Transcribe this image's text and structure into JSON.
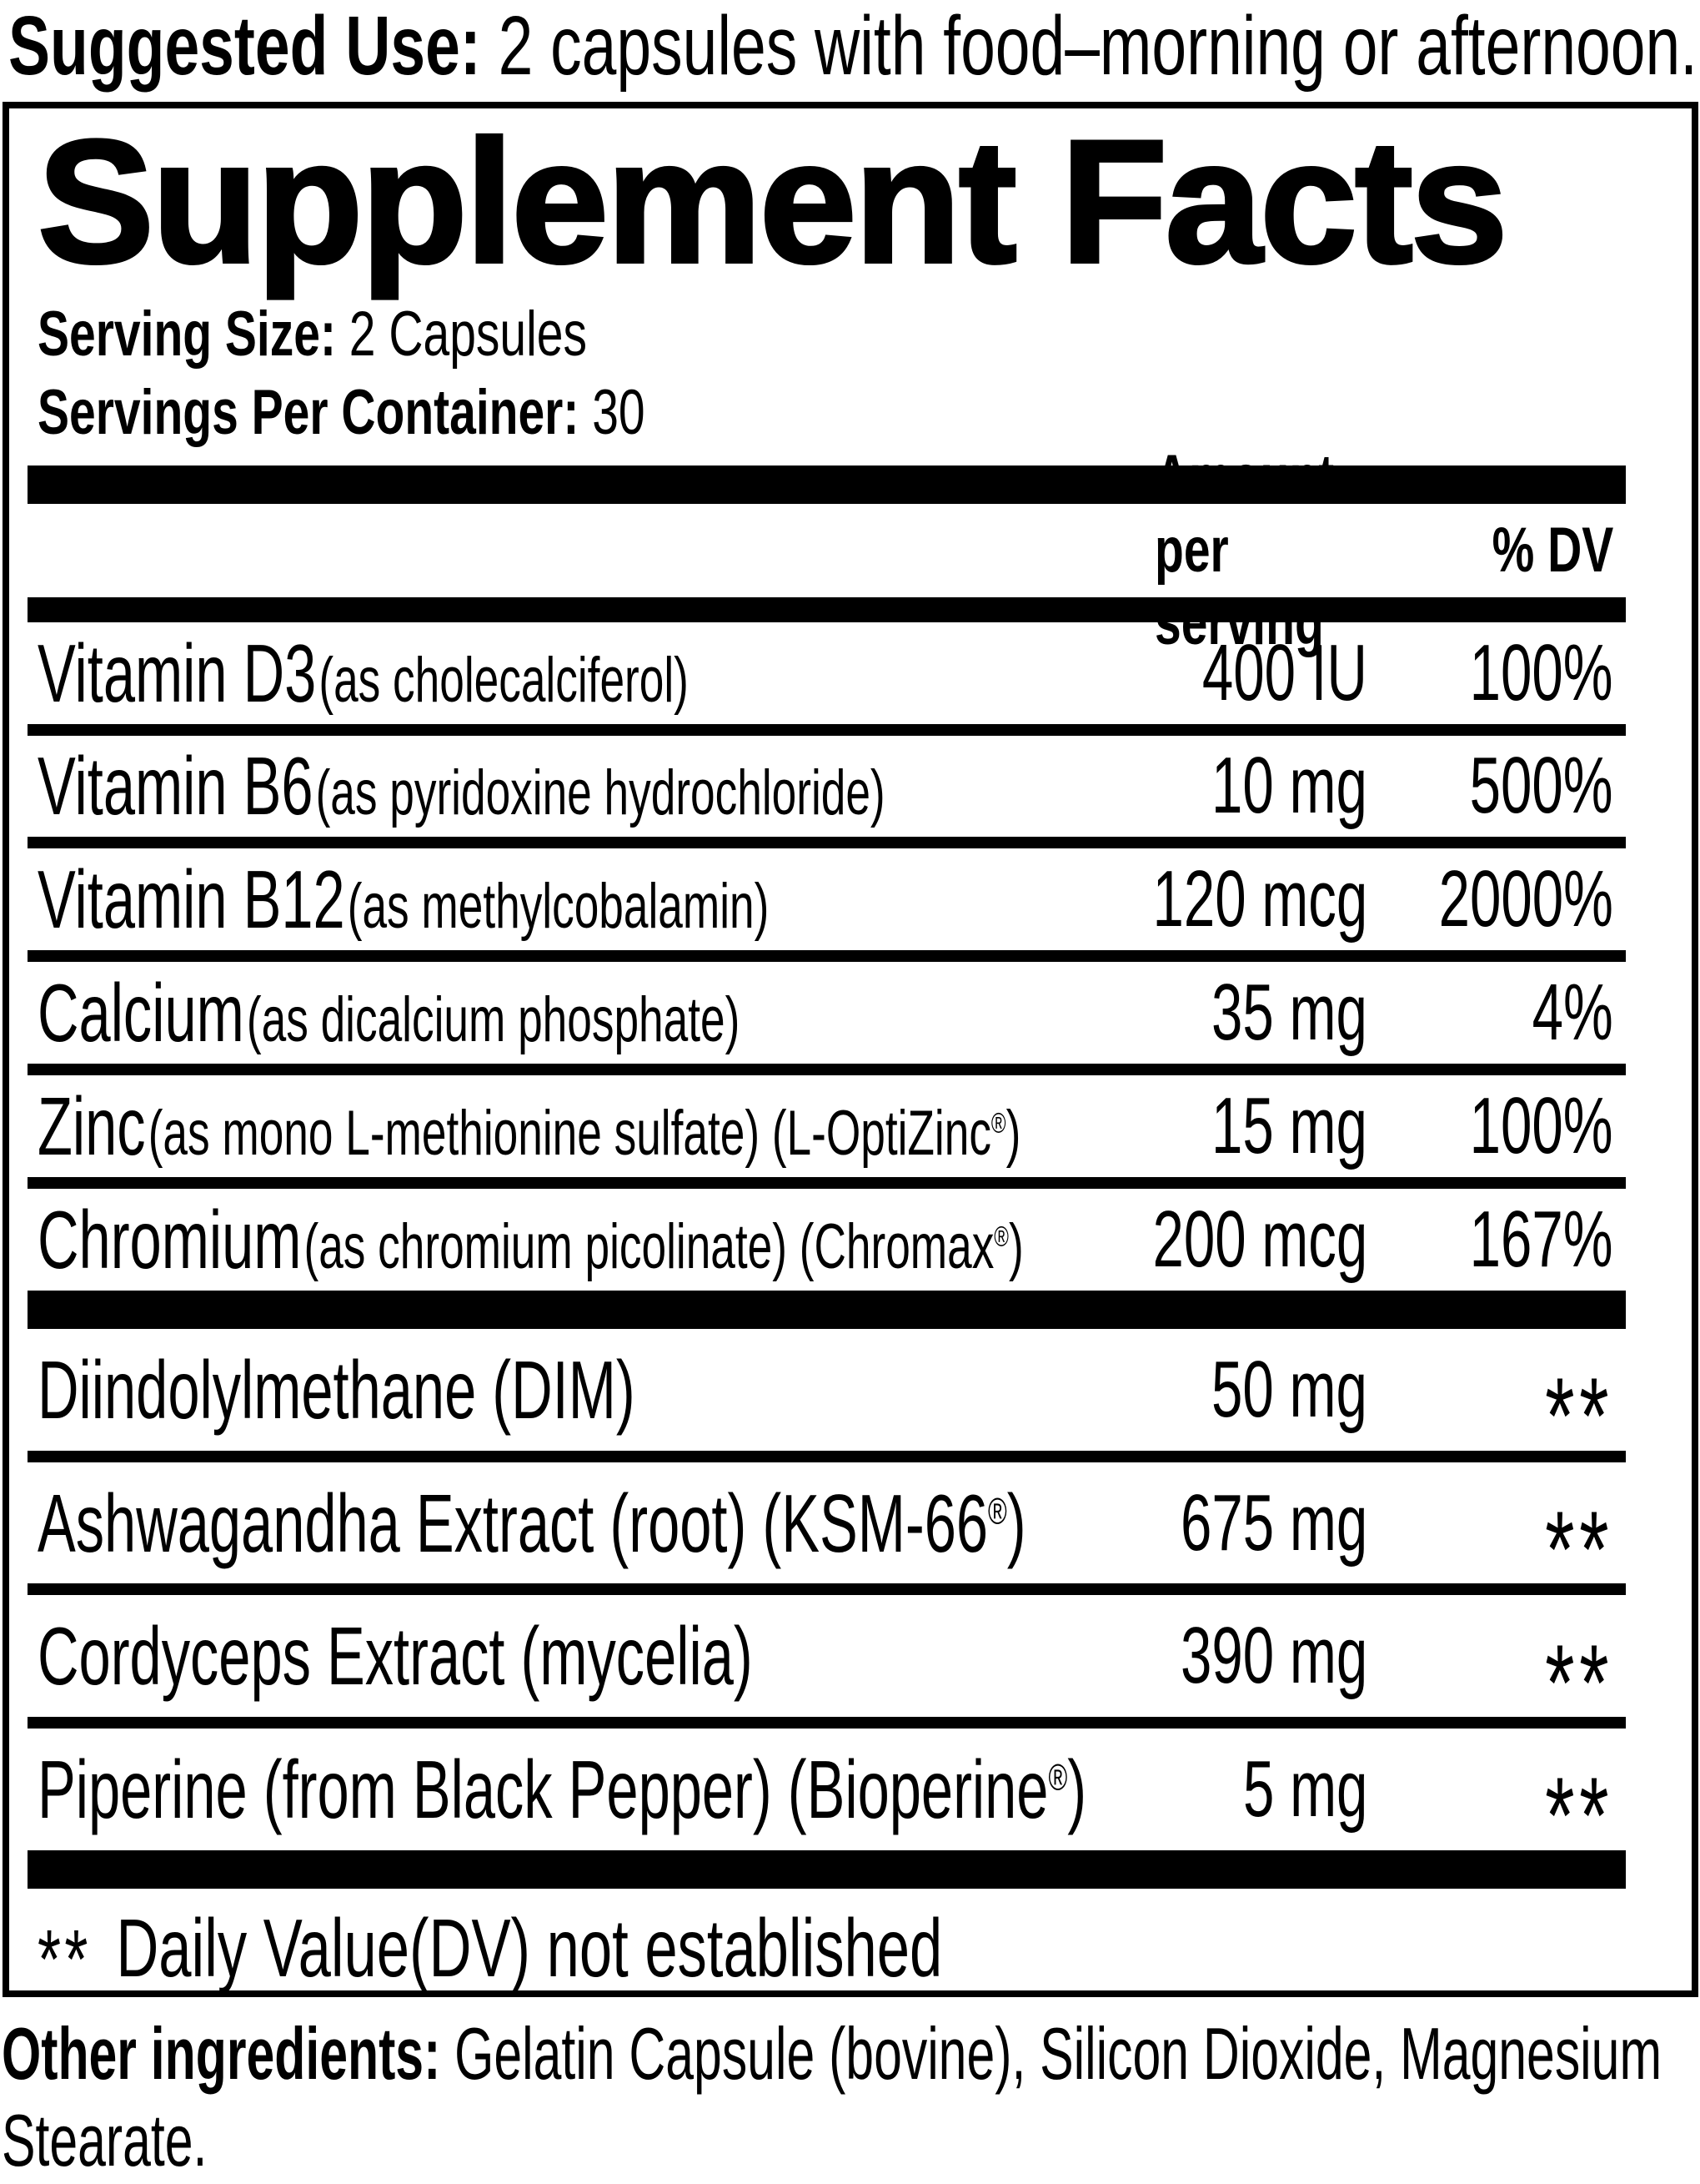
{
  "suggested_use": {
    "label": "Suggested Use:",
    "text": "2 capsules with food–morning or afternoon."
  },
  "panel": {
    "title": "Supplement Facts",
    "serving_size_label": "Serving Size:",
    "serving_size_value": "2 Capsules",
    "servings_label": "Servings Per Container:",
    "servings_value": "30",
    "col_amount": "Amount per serving",
    "col_dv": "% DV",
    "nutrients": [
      {
        "name": "Vitamin D3",
        "descriptor": "(as cholecalciferol)",
        "amount": "400 IU",
        "dv": "100%"
      },
      {
        "name": "Vitamin B6",
        "descriptor": "(as pyridoxine hydrochloride)",
        "amount": "10 mg",
        "dv": "500%"
      },
      {
        "name": "Vitamin B12",
        "descriptor": "(as methylcobalamin)",
        "amount": "120 mcg",
        "dv": "2000%"
      },
      {
        "name": "Calcium",
        "descriptor": "(as dicalcium phosphate)",
        "amount": "35 mg",
        "dv": "4%"
      },
      {
        "name": "Zinc",
        "descriptor": "(as mono L-methionine sulfate) (L-OptiZinc®)",
        "amount": "15 mg",
        "dv": "100%"
      },
      {
        "name": "Chromium",
        "descriptor": "(as chromium picolinate) (Chromax®)",
        "amount": "200 mcg",
        "dv": "167%"
      }
    ],
    "botanicals": [
      {
        "name": "Diindolylmethane (DIM)",
        "amount": "50 mg",
        "dv": "**"
      },
      {
        "name": "Ashwagandha Extract (root) (KSM-66®)",
        "amount": "675 mg",
        "dv": "**"
      },
      {
        "name": "Cordyceps Extract (mycelia)",
        "amount": "390 mg",
        "dv": "**"
      },
      {
        "name": "Piperine (from Black Pepper) (Bioperine®)",
        "amount": "5 mg",
        "dv": "**"
      }
    ],
    "footnote_stars": "**",
    "footnote_text": "Daily Value(DV) not established"
  },
  "other_ingredients": {
    "label": "Other ingredients:",
    "text": "Gelatin Capsule (bovine), Silicon Dioxide, Magnesium Stearate."
  },
  "colors": {
    "ink": "#000000",
    "paper": "#ffffff"
  }
}
